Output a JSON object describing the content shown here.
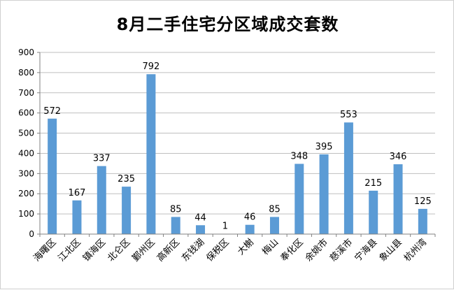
{
  "chart_data": {
    "type": "bar",
    "title": "8月二手住宅分区域成交套数",
    "xlabel": "",
    "ylabel": "",
    "ylim": [
      0,
      900
    ],
    "yticks": [
      0,
      100,
      200,
      300,
      400,
      500,
      600,
      700,
      800,
      900
    ],
    "grid": true,
    "legend": "none",
    "bar_color": "#5B9BD5",
    "categories": [
      "海曙区",
      "江北区",
      "镇海区",
      "北仑区",
      "鄞州区",
      "高新区",
      "东钱湖",
      "保税区",
      "大榭",
      "梅山",
      "奉化区",
      "余姚市",
      "慈溪市",
      "宁海县",
      "象山县",
      "杭州湾"
    ],
    "values": [
      572,
      167,
      337,
      235,
      792,
      85,
      44,
      1,
      46,
      85,
      348,
      395,
      553,
      215,
      346,
      125
    ]
  }
}
